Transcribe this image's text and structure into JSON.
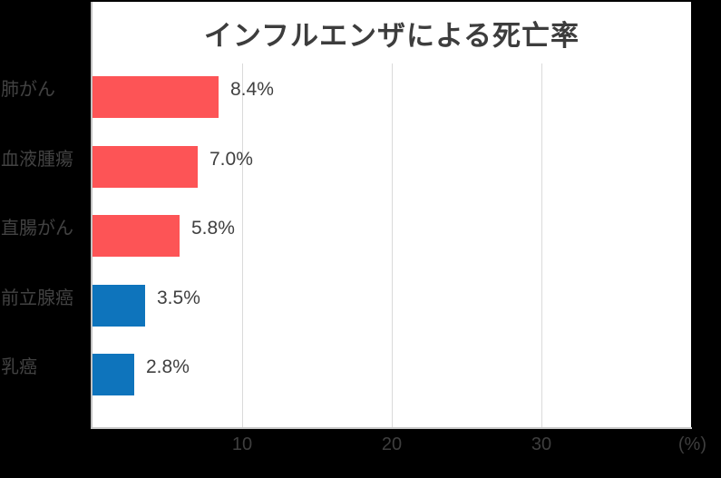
{
  "colors": {
    "background": "#000000",
    "chart_background": "#FFFFFF",
    "bar_red": "#FD5456",
    "bar_blue": "#0E74BC",
    "gridline": "#DADADA",
    "axis_line": "#C0C0C0",
    "text": "#3E3E3E"
  },
  "chart_data": {
    "type": "bar",
    "orientation": "horizontal",
    "title": "インフルエンザによる死亡率",
    "categories": [
      "肺がん",
      "血液腫瘍",
      "直腸がん",
      "前立腺癌",
      "乳癌"
    ],
    "values": [
      8.4,
      7.0,
      5.8,
      3.5,
      2.8
    ],
    "value_labels": [
      "8.4%",
      "7.0%",
      "5.8%",
      "3.5%",
      "2.8%"
    ],
    "bar_colors": [
      "#FD5456",
      "#FD5456",
      "#FD5456",
      "#0E74BC",
      "#0E74BC"
    ],
    "xlim": [
      0,
      40
    ],
    "x_ticks": [
      10,
      20,
      30
    ],
    "x_axis_unit": "(%)",
    "grid": true,
    "legend": false,
    "plot_background": "#FFFFFF"
  }
}
